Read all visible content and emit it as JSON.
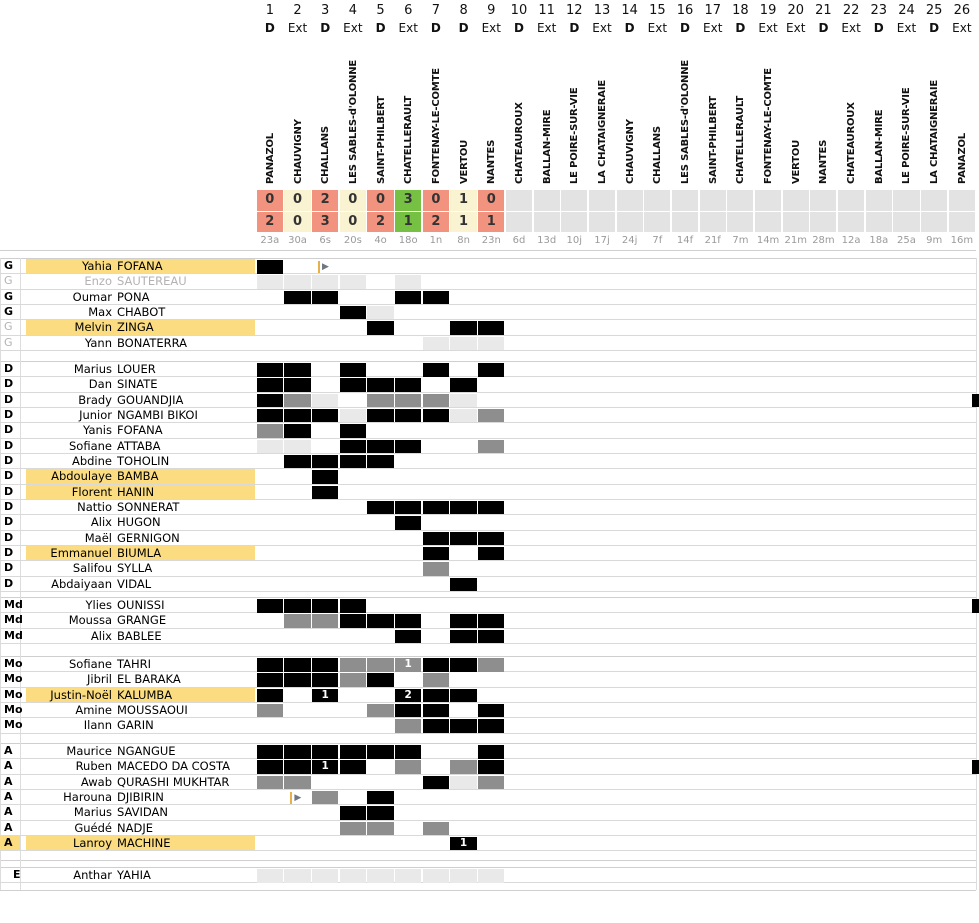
{
  "colors": {
    "win": "#76C043",
    "draw": "#FAF3D2",
    "loss": "#F1937F",
    "future_cell": "#E3E3E3",
    "highlight": "#FBDC80",
    "cell_black": "#000000",
    "cell_gray": "#8E8E8E",
    "cell_light": "#E9E9E9",
    "grid_line": "#D9D9D9",
    "date_text": "#9A9A9A",
    "inactive_text": "#B3B3B3"
  },
  "header": {
    "venue_home_label": "D",
    "venue_away_label": "Ext"
  },
  "matches": [
    {
      "num": "1",
      "venue": "D",
      "opponent": "PANAZOL",
      "date": "23a",
      "score_for": "0",
      "score_against": "2",
      "result": "loss"
    },
    {
      "num": "2",
      "venue": "Ext",
      "opponent": "CHAUVIGNY",
      "date": "30a",
      "score_for": "0",
      "score_against": "0",
      "result": "draw"
    },
    {
      "num": "3",
      "venue": "D",
      "opponent": "CHALLANS",
      "date": "6s",
      "score_for": "2",
      "score_against": "3",
      "result": "loss"
    },
    {
      "num": "4",
      "venue": "Ext",
      "opponent": "LES SABLES-d'OLONNE",
      "date": "20s",
      "score_for": "0",
      "score_against": "0",
      "result": "draw"
    },
    {
      "num": "5",
      "venue": "D",
      "opponent": "SAINT-PHILBERT",
      "date": "4o",
      "score_for": "0",
      "score_against": "2",
      "result": "loss"
    },
    {
      "num": "6",
      "venue": "Ext",
      "opponent": "CHATELLERAULT",
      "date": "18o",
      "score_for": "3",
      "score_against": "1",
      "result": "win"
    },
    {
      "num": "7",
      "venue": "D",
      "opponent": "FONTENAY-LE-COMTE",
      "date": "1n",
      "score_for": "0",
      "score_against": "2",
      "result": "loss"
    },
    {
      "num": "8",
      "venue": "D",
      "opponent": "VERTOU",
      "date": "8n",
      "score_for": "1",
      "score_against": "1",
      "result": "draw"
    },
    {
      "num": "9",
      "venue": "Ext",
      "opponent": "NANTES",
      "date": "23n",
      "score_for": "0",
      "score_against": "1",
      "result": "loss"
    },
    {
      "num": "10",
      "venue": "D",
      "opponent": "CHATEAUROUX",
      "date": "6d"
    },
    {
      "num": "11",
      "venue": "Ext",
      "opponent": "BALLAN-MIRE",
      "date": "13d"
    },
    {
      "num": "12",
      "venue": "D",
      "opponent": "LE POIRE-SUR-VIE",
      "date": "10j"
    },
    {
      "num": "13",
      "venue": "Ext",
      "opponent": "LA CHATAIGNERAIE",
      "date": "17j"
    },
    {
      "num": "14",
      "venue": "D",
      "opponent": "CHAUVIGNY",
      "date": "24j"
    },
    {
      "num": "15",
      "venue": "Ext",
      "opponent": "CHALLANS",
      "date": "7f"
    },
    {
      "num": "16",
      "venue": "D",
      "opponent": "LES SABLES-d'OLONNE",
      "date": "14f"
    },
    {
      "num": "17",
      "venue": "Ext",
      "opponent": "SAINT-PHILBERT",
      "date": "21f"
    },
    {
      "num": "18",
      "venue": "D",
      "opponent": "CHATELLERAULT",
      "date": "7m"
    },
    {
      "num": "19",
      "venue": "Ext",
      "opponent": "FONTENAY-LE-COMTE",
      "date": "14m"
    },
    {
      "num": "20",
      "venue": "Ext",
      "opponent": "VERTOU",
      "date": "21m"
    },
    {
      "num": "21",
      "venue": "D",
      "opponent": "NANTES",
      "date": "28m"
    },
    {
      "num": "22",
      "venue": "Ext",
      "opponent": "CHATEAUROUX",
      "date": "12a"
    },
    {
      "num": "23",
      "venue": "D",
      "opponent": "BALLAN-MIRE",
      "date": "18a"
    },
    {
      "num": "24",
      "venue": "Ext",
      "opponent": "LE POIRE-SUR-VIE",
      "date": "25a"
    },
    {
      "num": "25",
      "venue": "D",
      "opponent": "LA CHATAIGNERAIE",
      "date": "9m"
    },
    {
      "num": "26",
      "venue": "Ext",
      "opponent": "PANAZOL",
      "date": "16m"
    }
  ],
  "cell_legend": {
    "b": "played-full",
    "g": "substitute",
    "l": "bench-unused",
    "ar": "sub-in-arrow"
  },
  "sections": [
    {
      "code": "G",
      "players": [
        {
          "first": "Yahia",
          "last": "FOFANA",
          "highlight": true,
          "cells": {
            "1": "b",
            "3": "ar"
          }
        },
        {
          "first": "Enzo",
          "last": "SAUTEREAU",
          "gray": true,
          "pos_gray": true,
          "cells": {
            "1": "l",
            "2": "l",
            "3": "l",
            "4": "l",
            "6": "l"
          }
        },
        {
          "first": "Oumar",
          "last": "PONA",
          "cells": {
            "2": "b",
            "3": "b",
            "6": "b",
            "7": "b"
          }
        },
        {
          "first": "Max",
          "last": "CHABOT",
          "cells": {
            "4": "b",
            "5": "l"
          }
        },
        {
          "first": "Melvin",
          "last": "ZINGA",
          "highlight": true,
          "pos_gray": true,
          "cells": {
            "5": "b",
            "8": "b",
            "9": "b"
          }
        },
        {
          "first": "Yann",
          "last": "BONATERRA",
          "pos_gray": true,
          "cells": {
            "7": "l",
            "8": "l",
            "9": "l"
          }
        }
      ]
    },
    {
      "code": "D",
      "players": [
        {
          "first": "Marius",
          "last": "LOUER",
          "cells": {
            "1": "b",
            "2": "b",
            "4": "b",
            "7": "b",
            "9": "b"
          }
        },
        {
          "first": "Dan",
          "last": "SINATE",
          "cells": {
            "1": "b",
            "2": "b",
            "4": "b",
            "5": "b",
            "6": "b",
            "8": "b"
          }
        },
        {
          "first": "Brady",
          "last": "GOUANDJIA",
          "edge": true,
          "cells": {
            "1": "b",
            "2": "g",
            "3": "l",
            "5": "g",
            "6": "g",
            "7": "g",
            "8": "l"
          }
        },
        {
          "first": "Junior",
          "last": "NGAMBI BIKOI",
          "cells": {
            "1": "b",
            "2": "b",
            "3": "b",
            "4": "l",
            "5": "b",
            "6": "b",
            "7": "b",
            "8": "l",
            "9": "g"
          }
        },
        {
          "first": "Yanis",
          "last": "FOFANA",
          "cells": {
            "1": "g",
            "2": "b",
            "4": "b"
          }
        },
        {
          "first": "Sofiane",
          "last": "ATTABA",
          "cells": {
            "1": "l",
            "2": "l",
            "4": "b",
            "5": "b",
            "6": "b",
            "9": "g"
          }
        },
        {
          "first": "Abdine",
          "last": "TOHOLIN",
          "cells": {
            "2": "b",
            "3": "b",
            "4": "b",
            "5": "b"
          }
        },
        {
          "first": "Abdoulaye",
          "last": "BAMBA",
          "highlight": true,
          "cells": {
            "3": "b"
          }
        },
        {
          "first": "Florent",
          "last": "HANIN",
          "highlight": true,
          "cells": {
            "3": "b"
          }
        },
        {
          "first": "Nattio",
          "last": "SONNERAT",
          "cells": {
            "5": "b",
            "6": "b",
            "7": "b",
            "8": "b",
            "9": "b"
          }
        },
        {
          "first": "Alix",
          "last": "HUGON",
          "cells": {
            "6": "b"
          }
        },
        {
          "first": "Maël",
          "last": "GERNIGON",
          "cells": {
            "7": "b",
            "8": "b",
            "9": "b"
          }
        },
        {
          "first": "Emmanuel",
          "last": "BIUMLA",
          "highlight": true,
          "cells": {
            "7": "b",
            "9": "b"
          }
        },
        {
          "first": "Salifou",
          "last": "SYLLA",
          "cells": {
            "7": "g"
          }
        },
        {
          "first": "Abdaiyaan",
          "last": "VIDAL",
          "cells": {
            "8": "b"
          }
        }
      ]
    },
    {
      "code": "Md",
      "players": [
        {
          "first": "Ylies",
          "last": "OUNISSI",
          "edge": true,
          "cells": {
            "1": "b",
            "2": "b",
            "3": "b",
            "4": "b"
          }
        },
        {
          "first": "Moussa",
          "last": "GRANGE",
          "cells": {
            "2": "g",
            "3": "g",
            "4": "b",
            "5": "b",
            "6": "b",
            "8": "b",
            "9": "b"
          }
        },
        {
          "first": "Alix",
          "last": "BABLEE",
          "cells": {
            "6": "b",
            "8": "b",
            "9": "b"
          }
        }
      ]
    },
    {
      "code": "Mo",
      "players": [
        {
          "first": "Sofiane",
          "last": "TAHRI",
          "cells": {
            "1": "b",
            "2": "b",
            "3": "b",
            "4": "g",
            "5": "g",
            "6": "g1",
            "7": "b",
            "8": "b",
            "9": "g"
          }
        },
        {
          "first": "Jibril",
          "last": "EL BARAKA",
          "cells": {
            "1": "b",
            "2": "b",
            "3": "b",
            "4": "g",
            "5": "b",
            "7": "g"
          }
        },
        {
          "first": "Justin-Noël",
          "last": "KALUMBA",
          "highlight": true,
          "cells": {
            "1": "b",
            "3": "b1",
            "6": "b2",
            "7": "b",
            "8": "b"
          }
        },
        {
          "first": "Amine",
          "last": "MOUSSAOUI",
          "cells": {
            "1": "g",
            "5": "g",
            "6": "b",
            "7": "b",
            "9": "b"
          }
        },
        {
          "first": "Ilann",
          "last": "GARIN",
          "cells": {
            "6": "g",
            "7": "b",
            "8": "b",
            "9": "b"
          }
        }
      ]
    },
    {
      "code": "A",
      "players": [
        {
          "first": "Maurice",
          "last": "NGANGUE",
          "cells": {
            "1": "b",
            "2": "b",
            "3": "b",
            "4": "b",
            "5": "b",
            "6": "b",
            "9": "b"
          }
        },
        {
          "first": "Ruben",
          "last": "MACEDO DA COSTA",
          "edge": true,
          "cells": {
            "1": "b",
            "2": "b",
            "3": "b1",
            "4": "b",
            "6": "g",
            "8": "g",
            "9": "b"
          }
        },
        {
          "first": "Awab",
          "last": "QURASHI MUKHTAR",
          "cells": {
            "1": "g",
            "2": "g",
            "7": "b",
            "8": "l",
            "9": "g"
          }
        },
        {
          "first": "Harouna",
          "last": "DJIBIRIN",
          "cells": {
            "2": "ar",
            "3": "g",
            "5": "b"
          }
        },
        {
          "first": "Marius",
          "last": "SAVIDAN",
          "cells": {
            "4": "b",
            "5": "b"
          }
        },
        {
          "first": "Guédé",
          "last": "NADJE",
          "cells": {
            "4": "g",
            "5": "g",
            "7": "g"
          }
        },
        {
          "first": "Lanroy",
          "last": "MACHINE",
          "highlight": true,
          "highlight_row": true,
          "cells": {
            "8": "b1"
          }
        }
      ]
    },
    {
      "code": "E",
      "players": [
        {
          "first": "Anthar",
          "last": "YAHIA",
          "cells": {
            "1": "l",
            "2": "l",
            "3": "l",
            "4": "l",
            "5": "l",
            "6": "l",
            "7": "l",
            "8": "l",
            "9": "l"
          }
        }
      ]
    }
  ],
  "markers": {
    "sub_in_arrow": "▶"
  }
}
